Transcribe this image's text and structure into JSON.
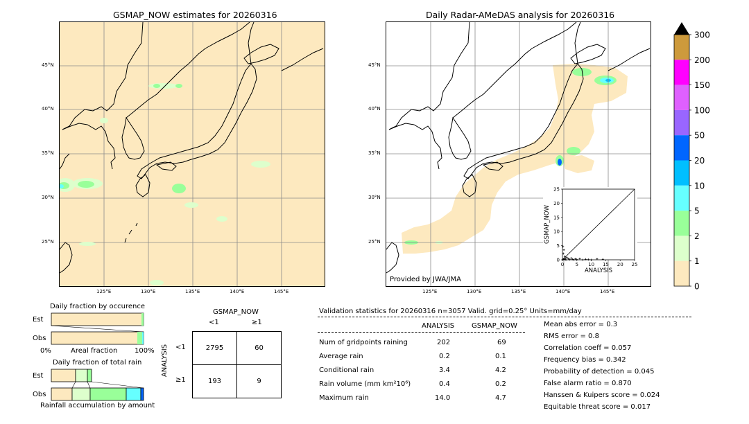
{
  "left_map": {
    "title": "GSMAP_NOW estimates for 20260316",
    "lat_labels": [
      "45°N",
      "40°N",
      "35°N",
      "30°N",
      "25°N"
    ],
    "lon_labels": [
      "125°E",
      "130°E",
      "135°E",
      "140°E",
      "145°E"
    ]
  },
  "right_map": {
    "title": "Daily Radar-AMeDAS analysis for 20260316",
    "lat_labels": [
      "45°N",
      "40°N",
      "35°N",
      "30°N",
      "25°N"
    ],
    "lon_labels": [
      "125°E",
      "130°E",
      "135°E",
      "140°E",
      "145°E"
    ],
    "credit": "Provided by JWA/JMA"
  },
  "colorbar": {
    "ticks": [
      "300",
      "200",
      "150",
      "100",
      "50",
      "20",
      "10",
      "5",
      "2",
      "1",
      "0"
    ],
    "colors": [
      "#cd9a3c",
      "#ff00ff",
      "#df60ff",
      "#9966ff",
      "#0066ff",
      "#00bfff",
      "#66ffff",
      "#99ff99",
      "#ddffcc",
      "#fde9bf"
    ]
  },
  "fraction_occurrence": {
    "title": "Daily fraction by occurence",
    "row_labels": [
      "Est",
      "Obs"
    ],
    "axis_left": "0%",
    "axis_mid": "Areal fraction",
    "axis_right": "100%"
  },
  "fraction_rain": {
    "title": "Daily fraction of total rain",
    "row_labels": [
      "Est",
      "Obs"
    ],
    "footer": "Rainfall accumulation by amount"
  },
  "contingency": {
    "header": "GSMAP_NOW",
    "col_labels": [
      "<1",
      "≥1"
    ],
    "row_axis": "ANALYSIS",
    "row_labels": [
      "<1",
      "≥1"
    ],
    "cells": [
      [
        "2795",
        "60"
      ],
      [
        "193",
        "9"
      ]
    ]
  },
  "validation": {
    "header": "Validation statistics for 20260316  n=3057 Valid. grid=0.25° Units=mm/day",
    "col_analysis": "ANALYSIS",
    "col_gsmap": "GSMAP_NOW",
    "rows": [
      {
        "label": "Num of gridpoints raining",
        "analysis": "202",
        "gsmap": "69"
      },
      {
        "label": "Average rain",
        "analysis": "0.2",
        "gsmap": "0.1"
      },
      {
        "label": "Conditional rain",
        "analysis": "3.4",
        "gsmap": "4.2"
      },
      {
        "label": "Rain volume (mm km²10⁶)",
        "analysis": "0.4",
        "gsmap": "0.2"
      },
      {
        "label": "Maximum rain",
        "analysis": "14.0",
        "gsmap": "4.7"
      }
    ],
    "scores": [
      "Mean abs error =    0.3",
      "RMS error =    0.8",
      "Correlation coeff =  0.057",
      "Frequency bias =  0.342",
      "Probability of detection =  0.045",
      "False alarm ratio =  0.870",
      "Hanssen & Kuipers score =  0.024",
      "Equitable threat score =  0.017"
    ]
  },
  "chart_data": {
    "type": "scatter",
    "xlabel": "ANALYSIS",
    "ylabel": "GSMAP_NOW",
    "xlim": [
      0,
      25
    ],
    "ylim": [
      0,
      25
    ],
    "x_ticks": [
      "0",
      "5",
      "10",
      "15",
      "20",
      "25"
    ],
    "y_ticks": [
      "0",
      "5",
      "10",
      "15",
      "20",
      "25"
    ],
    "series": [
      {
        "values": [
          [
            0.2,
            0.1
          ],
          [
            0.4,
            0.3
          ],
          [
            0.6,
            0.2
          ],
          [
            0.8,
            1.2
          ],
          [
            1.0,
            0.5
          ],
          [
            1.2,
            0.0
          ],
          [
            1.5,
            0.8
          ],
          [
            0.3,
            2.2
          ],
          [
            0.5,
            3.5
          ],
          [
            0.2,
            4.7
          ],
          [
            2.0,
            0.4
          ],
          [
            2.5,
            0.1
          ],
          [
            3.0,
            0.6
          ],
          [
            3.5,
            0.2
          ],
          [
            4.0,
            0.0
          ],
          [
            4.5,
            0.3
          ],
          [
            5.0,
            0.1
          ],
          [
            6.0,
            0.4
          ],
          [
            7.0,
            0.0
          ],
          [
            8.0,
            0.2
          ],
          [
            9.0,
            0.1
          ],
          [
            10.0,
            0.0
          ],
          [
            12.0,
            0.3
          ],
          [
            14.0,
            0.2
          ]
        ]
      }
    ]
  }
}
